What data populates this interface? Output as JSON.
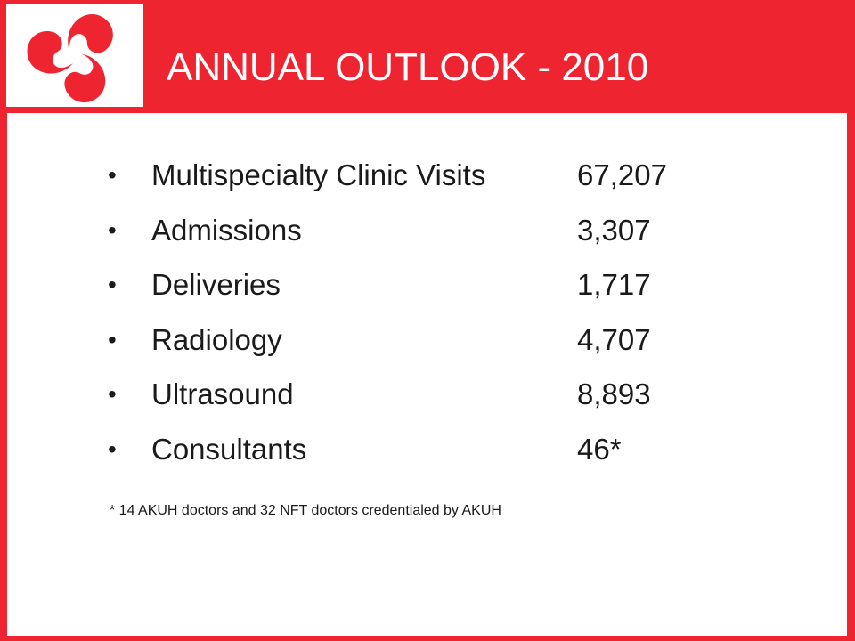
{
  "slide": {
    "title": "ANNUAL OUTLOOK - 2010",
    "logo_icon": "tri-swirl-logo-icon",
    "colors": {
      "brand_red": "#ee2430",
      "background": "#ffffff",
      "text": "#1a1a1a"
    },
    "bullet_glyph": "•",
    "stats": [
      {
        "label": "Multispecialty Clinic Visits",
        "value": "67,207"
      },
      {
        "label": "Admissions",
        "value": "3,307"
      },
      {
        "label": "Deliveries",
        "value": "1,717"
      },
      {
        "label": "Radiology",
        "value": "4,707"
      },
      {
        "label": "Ultrasound",
        "value": "8,893"
      },
      {
        "label": "Consultants",
        "value": "46*"
      }
    ],
    "footnote": "* 14 AKUH doctors and 32 NFT doctors credentialed by AKUH"
  }
}
